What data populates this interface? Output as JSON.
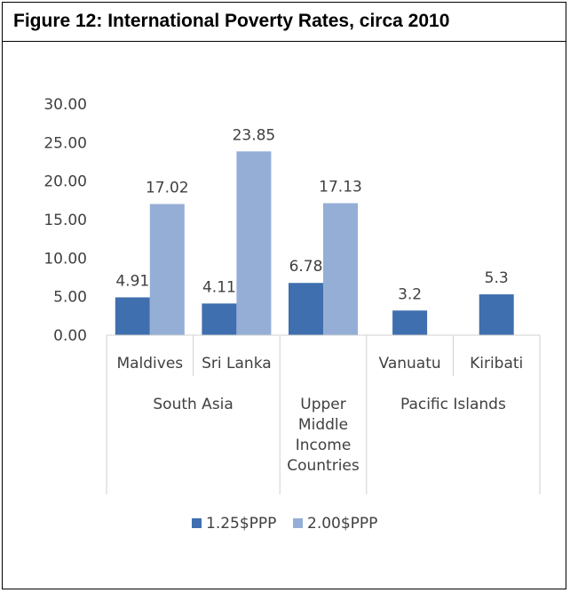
{
  "figure": {
    "title": "Figure 12: International Poverty Rates, circa 2010"
  },
  "colors": {
    "series1": "#3f6fae",
    "series2": "#95aed6",
    "axis": "#d0d0d0",
    "text": "#404040"
  },
  "chart_data": {
    "type": "bar",
    "title": "",
    "xlabel": "",
    "ylabel": "",
    "ylim": [
      0,
      30
    ],
    "yticks": [
      "0.00",
      "5.00",
      "10.00",
      "15.00",
      "20.00",
      "25.00",
      "30.00"
    ],
    "grid": false,
    "legend": "bottom",
    "categories": [
      "Maldives",
      "Sri Lanka",
      "Upper Middle Income Countries",
      "Vanuatu",
      "Kiribati"
    ],
    "category_lines": [
      [
        "Maldives"
      ],
      [
        "Sri Lanka"
      ],
      [
        "Upper",
        "Middle",
        "Income",
        "Countries"
      ],
      [
        "Vanuatu"
      ],
      [
        "Kiribati"
      ]
    ],
    "groups": [
      {
        "name": "South Asia",
        "categories": [
          "Maldives",
          "Sri Lanka"
        ]
      },
      {
        "name": "",
        "categories": [
          "Upper Middle Income Countries"
        ]
      },
      {
        "name": "Pacific Islands",
        "categories": [
          "Vanuatu",
          "Kiribati"
        ]
      }
    ],
    "series": [
      {
        "name": "1.25$PPP",
        "values": [
          4.91,
          4.11,
          6.78,
          3.2,
          5.3
        ],
        "labels": [
          "4.91",
          "4.11",
          "6.78",
          "3.2",
          "5.3"
        ]
      },
      {
        "name": "2.00$PPP",
        "values": [
          17.02,
          23.85,
          17.13,
          null,
          null
        ],
        "labels": [
          "17.02",
          "23.85",
          "17.13",
          "",
          ""
        ]
      }
    ]
  }
}
